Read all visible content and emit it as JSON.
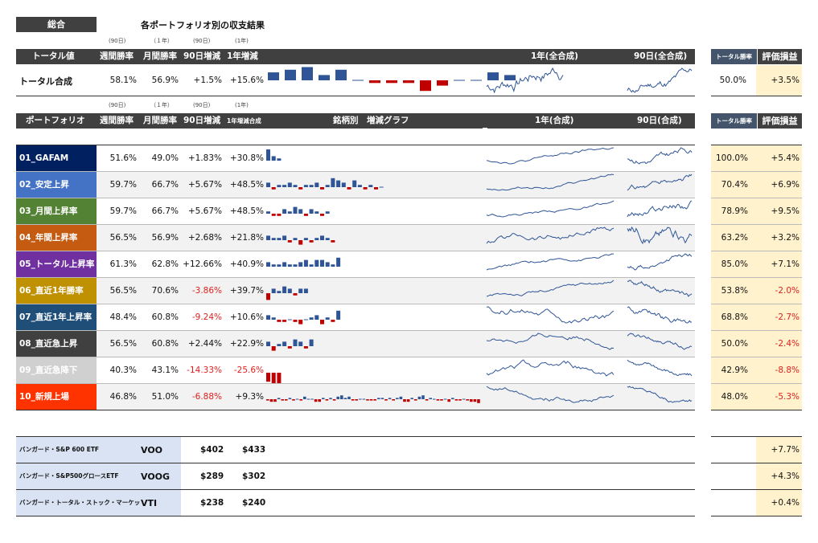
{
  "header": {
    "sogo_label": "総合",
    "title": "各ポートフォリオ別の収支結果"
  },
  "sub_labels": [
    "(90日)",
    "（１年）",
    "(90日)",
    "(1年)"
  ],
  "total_header": {
    "labels": [
      "トータル値",
      "週間勝率",
      "月間勝率",
      "90日増減",
      "1年増減"
    ],
    "chart1": "1年(全合成)",
    "chart2": "90日(全合成)",
    "right1": "トータル勝率",
    "right2": "評価損益"
  },
  "total_row": {
    "name": "トータル合成",
    "week": "58.1%",
    "month": "56.9%",
    "d90": "+1.5%",
    "y1": "+15.6%",
    "win": "50.0%",
    "pl": "+3.5%",
    "bars": [
      3,
      4,
      5,
      2,
      4,
      0,
      -1,
      -1,
      -1,
      -4,
      -2,
      0,
      0,
      3,
      2
    ]
  },
  "pf_header": {
    "labels": [
      "ポートフォリオ",
      "週間勝率",
      "月間勝率",
      "90日増減",
      "1年増減合成"
    ],
    "mid": "銘柄別　増減グラフ",
    "chart1": "1年(合成)",
    "chart2": "90日(合成)",
    "right1": "トータル勝率",
    "right2": "評価損益"
  },
  "colors": {
    "pos_bar": "#2f5597",
    "neg_bar": "#c00000",
    "line": "#2f5597",
    "neg_text": "#e02020",
    "pl_bg": "#fff2cc"
  },
  "portfolios": [
    {
      "name": "01_GAFAM",
      "color": "#002060",
      "week": "51.6%",
      "month": "49.0%",
      "d90": "+1.83%",
      "y1": "+30.8%",
      "win": "100.0%",
      "pl": "+5.4%",
      "bars": [
        5,
        2,
        1
      ]
    },
    {
      "name": "02_安定上昇",
      "color": "#4472c4",
      "week": "59.7%",
      "month": "66.7%",
      "d90": "+5.67%",
      "y1": "+48.5%",
      "win": "70.4%",
      "pl": "+6.9%",
      "bars": [
        2,
        -1,
        1,
        1,
        2,
        1,
        -1,
        1,
        1,
        2,
        -1,
        1,
        4,
        3,
        2,
        -1,
        3,
        1,
        -1,
        1,
        -1,
        0
      ]
    },
    {
      "name": "03_月間上昇率",
      "color": "#548235",
      "week": "59.7%",
      "month": "66.7%",
      "d90": "+5.67%",
      "y1": "+48.5%",
      "win": "78.9%",
      "pl": "+9.5%",
      "bars": [
        1,
        -1,
        -1,
        2,
        1,
        3,
        2,
        -1,
        2,
        1,
        -1,
        1
      ]
    },
    {
      "name": "04_年間上昇率",
      "color": "#c55a11",
      "week": "56.5%",
      "month": "56.9%",
      "d90": "+2.68%",
      "y1": "+21.8%",
      "win": "63.2%",
      "pl": "+3.2%",
      "bars": [
        2,
        1,
        1,
        2,
        -1,
        1,
        -2,
        1,
        -1,
        1,
        2,
        1,
        -1
      ]
    },
    {
      "name": "05_トータル上昇率",
      "color": "#7030a0",
      "week": "61.3%",
      "month": "62.8%",
      "d90": "+12.66%",
      "y1": "+40.9%",
      "win": "85.0%",
      "pl": "+7.1%",
      "bars": [
        2,
        1,
        1,
        2,
        1,
        1,
        2,
        3,
        1,
        3,
        3,
        2,
        1,
        4
      ]
    },
    {
      "name": "06_直近1年勝率",
      "color": "#bf9000",
      "week": "56.5%",
      "month": "70.6%",
      "d90": "-3.86%",
      "y1": "+39.7%",
      "win": "53.8%",
      "pl": "-2.0%",
      "bars": [
        -3,
        2,
        1,
        3,
        2,
        -1,
        2,
        2
      ]
    },
    {
      "name": "07_直近1年上昇率",
      "color": "#1f4e79",
      "week": "48.4%",
      "month": "60.8%",
      "d90": "-9.24%",
      "y1": "+10.6%",
      "win": "68.8%",
      "pl": "-2.7%",
      "bars": [
        2,
        1,
        -1,
        -1,
        0,
        -1,
        -2,
        0,
        1,
        2,
        -2,
        1,
        -1,
        4
      ]
    },
    {
      "name": "08_直近急上昇",
      "color": "#404040",
      "week": "56.5%",
      "month": "60.8%",
      "d90": "+2.44%",
      "y1": "+22.9%",
      "win": "50.0%",
      "pl": "-2.4%",
      "bars": [
        2,
        -2,
        1,
        2,
        -1,
        3,
        2,
        -1,
        3
      ]
    },
    {
      "name": "09_直近急降下",
      "color": "#d0d0d0",
      "week": "40.3%",
      "month": "43.1%",
      "d90": "-14.33%",
      "y1": "-25.6%",
      "win": "42.9%",
      "pl": "-8.8%",
      "bars": [
        -4,
        -5,
        -5
      ]
    },
    {
      "name": "10_新規上場",
      "color": "#ff3300",
      "week": "46.8%",
      "month": "51.0%",
      "d90": "-6.88%",
      "y1": "+9.3%",
      "win": "48.0%",
      "pl": "-5.3%",
      "bars": [
        -1,
        -2,
        -2,
        1,
        -1,
        -1,
        1,
        -1,
        0,
        -1,
        2,
        0,
        0,
        -2,
        -2,
        1,
        -1,
        1,
        -1,
        2,
        3,
        1,
        2,
        -1,
        -1,
        0,
        0,
        -1,
        -1,
        -1,
        1,
        1,
        -1,
        1,
        -1,
        1,
        2,
        -2,
        -2,
        1,
        -1,
        2,
        3,
        -1,
        1,
        0,
        -1,
        -1,
        0,
        -2,
        1,
        -1,
        -1,
        0,
        -1,
        -2,
        -2,
        -3
      ]
    }
  ],
  "etfs": [
    {
      "name": "バンガード・S&P 600 ETF",
      "ticker": "VOO",
      "p1": "$402",
      "p2": "$433",
      "pl": "+7.7%"
    },
    {
      "name": "バンガード・S&P500グロースETF",
      "ticker": "VOOG",
      "p1": "$289",
      "p2": "$302",
      "pl": "+4.3%"
    },
    {
      "name": "バンガード・トータル・ストック・マーケットETF",
      "ticker": "VTI",
      "p1": "$238",
      "p2": "$240",
      "pl": "+0.4%"
    }
  ]
}
